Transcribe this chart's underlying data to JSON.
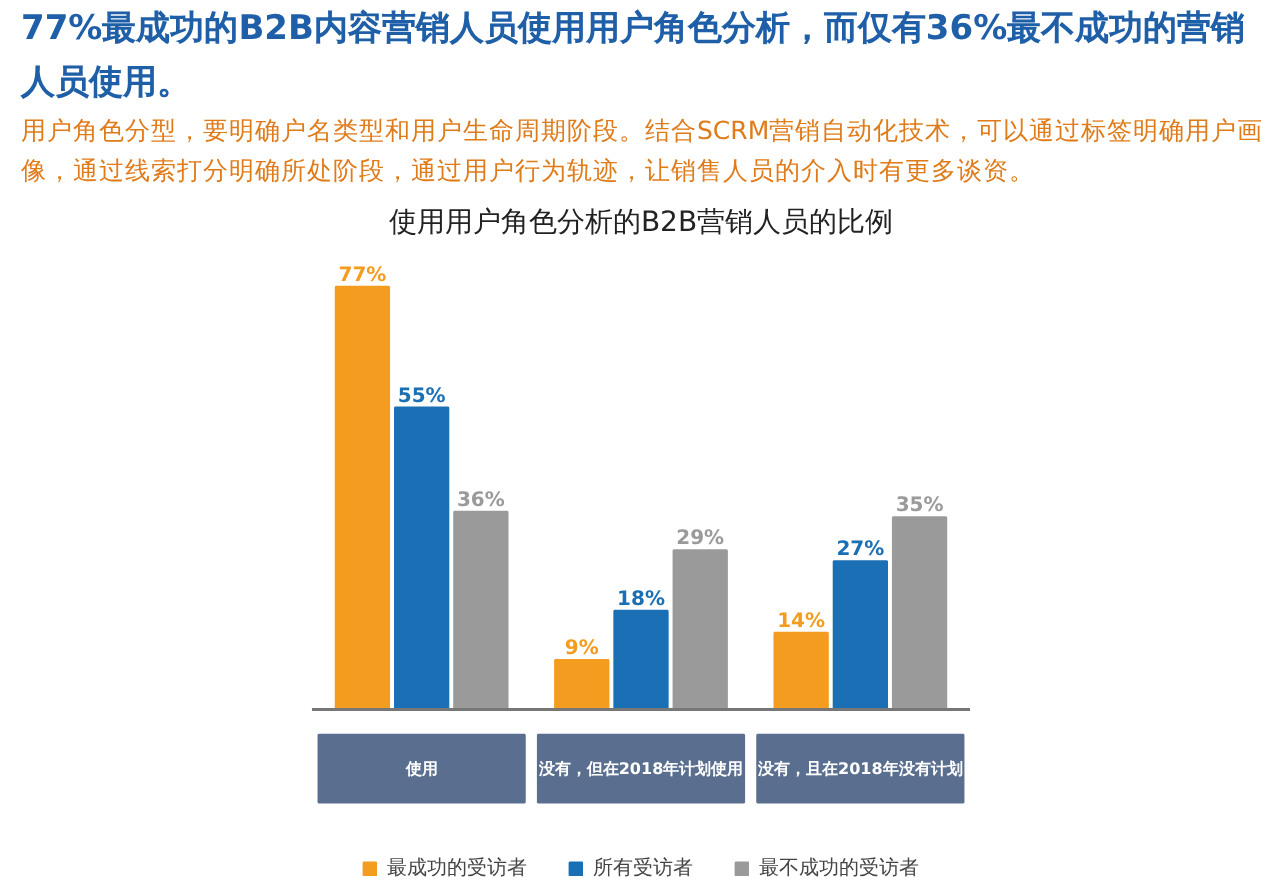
{
  "chart_data": {
    "type": "bar",
    "title": "77%最成功的B2B内容营销人员使用用户角色分析，而仅有36%最不成功的营销人员使用。",
    "subtitle": "用户角色分型，要明确户名类型和用户生命周期阶段。结合SCRM营销自动化技术，可以通过标签明确用户画像，通过线索打分明确所处阶段，通过用户行为轨迹，让销售人员的介入时有更多谈资。",
    "annotations": [
      "使用用户角色分析的B2B营销人员的比例"
    ],
    "categories": [
      "使用",
      "没有，但在2018年计划使用",
      "没有，且在2018年没有计划"
    ],
    "series": [
      {
        "name": "最成功的受访者",
        "color": "#f39c1f",
        "values": [
          77,
          9,
          14
        ],
        "value_labels": [
          "77%",
          "9%",
          "14%"
        ]
      },
      {
        "name": "所有受访者",
        "color": "#1a6fb5",
        "values": [
          55,
          18,
          27
        ],
        "value_labels": [
          "55%",
          "18%",
          "27%"
        ]
      },
      {
        "name": "最不成功的受访者",
        "color": "#9a9a9a",
        "values": [
          36,
          29,
          35
        ],
        "value_labels": [
          "36%",
          "29%",
          "35%"
        ]
      }
    ],
    "legend": "bottom"
  }
}
